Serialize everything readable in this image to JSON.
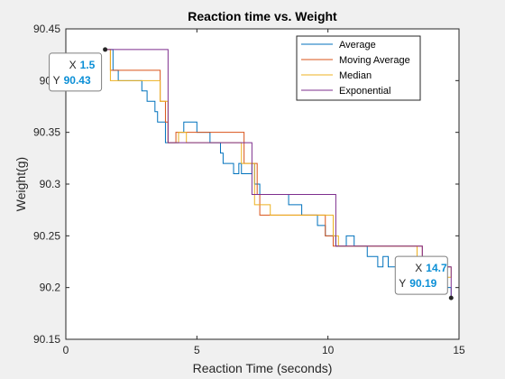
{
  "chart_data": {
    "type": "line",
    "title": "Reaction time vs. Weight",
    "xlabel": "Reaction Time (seconds)",
    "ylabel": "Weight(g)",
    "xlim": [
      0,
      15
    ],
    "ylim": [
      90.15,
      90.45
    ],
    "xticks": [
      0,
      5,
      10,
      15
    ],
    "xtick_labels": [
      "0",
      "5",
      "10",
      "15"
    ],
    "yticks": [
      90.15,
      90.2,
      90.25,
      90.3,
      90.35,
      90.4,
      90.45
    ],
    "ytick_labels": [
      "90.15",
      "90.2",
      "90.25",
      "90.3",
      "90.35",
      "90.4",
      "90.45"
    ],
    "grid": false,
    "legend_position": "top-right",
    "series": [
      {
        "name": "Average",
        "color": "#0072bd",
        "x": [
          1.5,
          1.8,
          2.0,
          2.9,
          3.1,
          3.4,
          3.5,
          3.8,
          4.3,
          4.5,
          5.0,
          5.5,
          5.9,
          6.0,
          6.4,
          6.6,
          6.7,
          7.1,
          7.2,
          7.4,
          8.5,
          9.0,
          9.6,
          9.9,
          10.3,
          10.7,
          11.0,
          11.5,
          11.9,
          12.1,
          12.3,
          12.6,
          12.9,
          13.1,
          13.3,
          13.6,
          14.1,
          14.7
        ],
        "y": [
          90.43,
          90.41,
          90.4,
          90.39,
          90.38,
          90.37,
          90.36,
          90.34,
          90.35,
          90.36,
          90.35,
          90.34,
          90.33,
          90.32,
          90.31,
          90.32,
          90.31,
          90.32,
          90.3,
          90.29,
          90.28,
          90.27,
          90.26,
          90.25,
          90.24,
          90.25,
          90.24,
          90.23,
          90.22,
          90.23,
          90.22,
          90.21,
          90.22,
          90.21,
          90.2,
          90.21,
          90.2,
          90.19
        ]
      },
      {
        "name": "Moving Average",
        "color": "#d95319",
        "x": [
          1.5,
          1.7,
          3.3,
          3.6,
          3.8,
          3.9,
          4.2,
          6.6,
          6.8,
          7.3,
          7.4,
          9.6,
          9.9,
          10.2,
          10.4,
          13.4,
          13.6,
          14.7
        ],
        "y": [
          90.43,
          90.41,
          90.41,
          90.38,
          90.36,
          90.34,
          90.35,
          90.35,
          90.32,
          90.29,
          90.27,
          90.27,
          90.25,
          90.24,
          90.24,
          90.24,
          90.22,
          90.22
        ]
      },
      {
        "name": "Median",
        "color": "#edb120",
        "x": [
          1.5,
          1.7,
          3.4,
          3.6,
          3.9,
          4.3,
          4.6,
          6.5,
          6.7,
          7.2,
          7.8,
          9.9,
          10.2,
          10.4,
          13.3,
          13.4,
          14.7
        ],
        "y": [
          90.43,
          90.4,
          90.4,
          90.38,
          90.34,
          90.35,
          90.34,
          90.34,
          90.32,
          90.28,
          90.27,
          90.27,
          90.25,
          90.24,
          90.24,
          90.21,
          90.22
        ]
      },
      {
        "name": "Exponential",
        "color": "#7e2f8e",
        "x": [
          1.5,
          3.7,
          3.9,
          6.6,
          7.1,
          7.3,
          10.1,
          10.3,
          13.5,
          13.6,
          14.7
        ],
        "y": [
          90.43,
          90.43,
          90.34,
          90.34,
          90.29,
          90.29,
          90.29,
          90.24,
          90.24,
          90.22,
          90.19
        ]
      }
    ],
    "datatips": [
      {
        "x_label": "X",
        "x_value": "1.5",
        "y_label": "Y",
        "y_value": "90.43",
        "x": 1.5,
        "y": 90.43,
        "anchor": "left"
      },
      {
        "x_label": "X",
        "x_value": "14.7",
        "y_label": "Y",
        "y_value": "90.19",
        "x": 14.7,
        "y": 90.19,
        "anchor": "left"
      }
    ]
  }
}
